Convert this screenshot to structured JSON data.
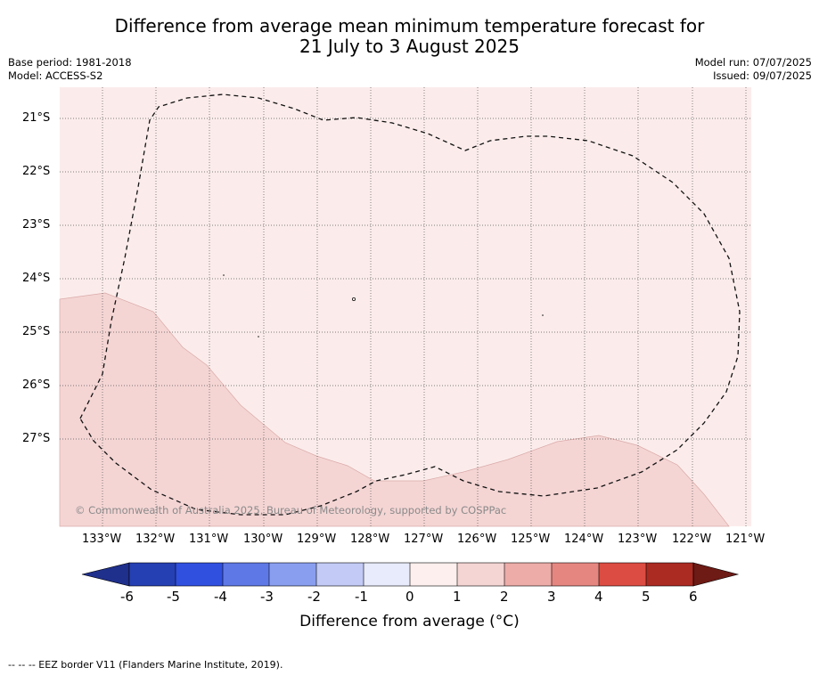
{
  "header": {
    "title_line1": "Difference from average mean minimum temperature forecast for",
    "title_line2": "21 July to 3 August 2025",
    "base_period": "Base period: 1981-2018",
    "model": "Model: ACCESS-S2",
    "model_run": "Model run: 07/07/2025",
    "issued": "Issued: 09/07/2025"
  },
  "map": {
    "lat_labels": [
      "21°S",
      "22°S",
      "23°S",
      "24°S",
      "25°S",
      "26°S",
      "27°S"
    ],
    "lon_labels": [
      "133°W",
      "132°W",
      "131°W",
      "130°W",
      "129°W",
      "128°W",
      "127°W",
      "126°W",
      "125°W",
      "124°W",
      "123°W",
      "122°W",
      "121°W"
    ],
    "copyright": "© Commonwealth of Australia 2025, Bureau of Meteorology, supported by COSPPac",
    "fill_colors": {
      "anomaly_0_1": "#fbeceb",
      "anomaly_1_2": "#f4d5d4"
    }
  },
  "colorbar": {
    "ticks": [
      "-6",
      "-5",
      "-4",
      "-3",
      "-2",
      "-1",
      "0",
      "1",
      "2",
      "3",
      "4",
      "5",
      "6"
    ],
    "colors": [
      "#1f2f8c",
      "#2540b3",
      "#3050e0",
      "#5e78e6",
      "#8a9ef0",
      "#c2caf5",
      "#e8ebfb",
      "#fcefed",
      "#f4d5d4",
      "#edaca8",
      "#e68680",
      "#dc4c42",
      "#ab2a22",
      "#6e1a15"
    ],
    "label": "Difference from average ($^\\circ$C)",
    "label_display": "Difference from average (°C)"
  },
  "footer": {
    "legend": "--  --  -- EEZ border V11 (Flanders Marine Institute, 2019)."
  }
}
